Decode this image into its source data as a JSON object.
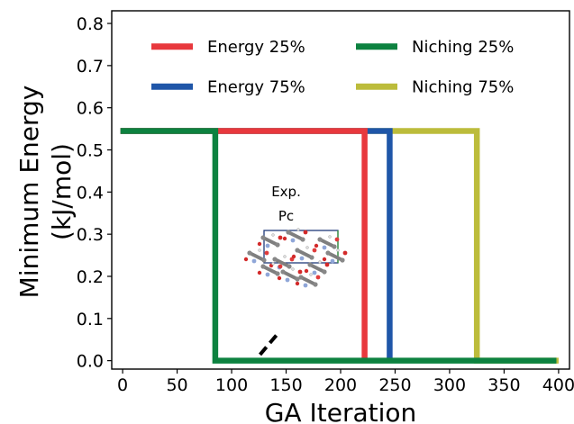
{
  "chart_data": {
    "type": "line",
    "xlabel": "GA Iteration",
    "ylabel": "Minimum Energy (kJ/mol)",
    "ylabel_lines": [
      "Minimum Energy",
      "(kJ/mol)"
    ],
    "xlim": [
      -10,
      410
    ],
    "ylim": [
      -0.02,
      0.83
    ],
    "xticks": [
      0,
      50,
      100,
      150,
      200,
      250,
      300,
      350,
      400
    ],
    "yticks": [
      0.0,
      0.1,
      0.2,
      0.3,
      0.4,
      0.5,
      0.6,
      0.7,
      0.8
    ],
    "ytick_labels": [
      "0.0",
      "0.1",
      "0.2",
      "0.3",
      "0.4",
      "0.5",
      "0.6",
      "0.7",
      "0.8"
    ],
    "legend_position": "upper",
    "series": [
      {
        "name": "Energy 25%",
        "color": "#e8383d",
        "points": [
          [
            -2,
            0.545
          ],
          [
            222,
            0.545
          ],
          [
            222,
            0.0
          ]
        ]
      },
      {
        "name": "Energy 75%",
        "color": "#1f56a8",
        "points": [
          [
            -2,
            0.545
          ],
          [
            245,
            0.545
          ],
          [
            245,
            0.0
          ]
        ]
      },
      {
        "name": "Niching 25%",
        "color": "#0d8240",
        "points": [
          [
            -2,
            0.545
          ],
          [
            85,
            0.545
          ],
          [
            85,
            0.0
          ],
          [
            398,
            0.0
          ]
        ]
      },
      {
        "name": "Niching 75%",
        "color": "#bcbc3b",
        "points": [
          [
            -2,
            0.545
          ],
          [
            325,
            0.545
          ],
          [
            325,
            0.0
          ],
          [
            400,
            0.0
          ]
        ]
      }
    ],
    "draw_order": [
      3,
      1,
      0,
      2
    ],
    "annotation": {
      "lines": [
        "Exp.",
        "Pc"
      ],
      "text_anchor": [
        150,
        0.39
      ],
      "arrow_from": [
        141,
        0.06
      ],
      "arrow_to": [
        123,
        0.005
      ]
    }
  }
}
